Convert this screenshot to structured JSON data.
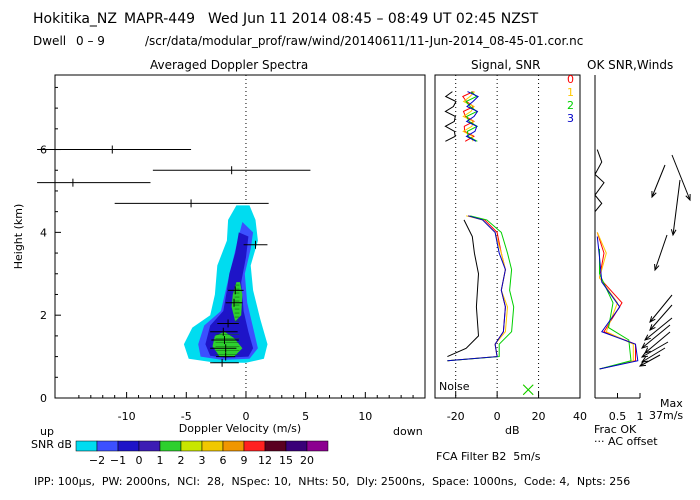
{
  "header": {
    "site": "Hokitika_NZ",
    "radar": "MAPR-449",
    "datetime": "Wed Jun 11 2014 08:45 – 08:49 UT 02:45 NZST",
    "dwell_label": "Dwell",
    "dwell_range": "0 – 9",
    "file_path": "/scr/data/modular_prof/raw/wind/20140611/11-Jun-2014_08-45-01.cor.nc"
  },
  "panels": {
    "spectra_title": "Averaged Doppler Spectra",
    "signal_title": "Signal, SNR",
    "ok_title": "OK SNR,Winds"
  },
  "labels": {
    "up": "up",
    "down": "down",
    "snr_db": "SNR dB",
    "noise": "Noise",
    "fca": "FCA Filter B2  5m/s",
    "max": "Max",
    "max_value": "37m/s",
    "frac_ok": "Frac OK",
    "ac_offset": "··· AC offset",
    "db_xlabel": "dB",
    "footer": "IPP: 100μs,  PW: 2000ns,  NCI:  28,  NSpec: 10,  NHts: 50,  Dly: 2500ns,  Space: 1000ns,  Code: 4,  Npts: 256"
  },
  "colorbar": {
    "labels": [
      "-2",
      "-1",
      "0",
      "1",
      "2",
      "3",
      "6",
      "9",
      "12",
      "15",
      "20"
    ],
    "colors": [
      "#00dcf0",
      "#3c50ff",
      "#1e14c8",
      "#3c1cb4",
      "#2ed02e",
      "#c8e600",
      "#f0c800",
      "#f09600",
      "#ff2020",
      "#5a0020",
      "#3a0078",
      "#8c0090"
    ]
  },
  "legend": [
    {
      "label": "0",
      "color": "#ff0000"
    },
    {
      "label": "1",
      "color": "#ffc800"
    },
    {
      "label": "2",
      "color": "#00d000"
    },
    {
      "label": "3",
      "color": "#0000c8"
    }
  ],
  "chart_data": [
    {
      "type": "heatmap",
      "title": "Averaged Doppler Spectra",
      "xlabel": "Doppler Velocity (m/s)",
      "ylabel": "Height (km)",
      "xlim": [
        -16,
        15
      ],
      "ylim": [
        0,
        7.8
      ],
      "xticks": [
        -10,
        -5,
        0,
        5,
        10
      ],
      "yticks": [
        0,
        2,
        4,
        6
      ],
      "contours": [
        {
          "level": -2,
          "color": "#00dcf0",
          "points": [
            [
              -0.8,
              4.65
            ],
            [
              -1.5,
              4.3
            ],
            [
              -1.6,
              3.8
            ],
            [
              -2.4,
              3.2
            ],
            [
              -2.6,
              2.5
            ],
            [
              -3.0,
              2.0
            ],
            [
              -4.5,
              1.7
            ],
            [
              -5.2,
              1.3
            ],
            [
              -4.8,
              0.95
            ],
            [
              -2.5,
              0.85
            ],
            [
              0,
              0.85
            ],
            [
              1.5,
              0.95
            ],
            [
              1.8,
              1.3
            ],
            [
              1.2,
              1.9
            ],
            [
              0.6,
              2.6
            ],
            [
              0.4,
              3.2
            ],
            [
              1.0,
              3.8
            ],
            [
              0.8,
              4.3
            ],
            [
              0.3,
              4.65
            ]
          ]
        },
        {
          "level": -1,
          "color": "#3c50ff",
          "points": [
            [
              -0.3,
              4.25
            ],
            [
              -0.7,
              3.8
            ],
            [
              -1.2,
              3.2
            ],
            [
              -1.7,
              2.6
            ],
            [
              -2.1,
              2.1
            ],
            [
              -3.5,
              1.75
            ],
            [
              -4.0,
              1.3
            ],
            [
              -3.8,
              1.0
            ],
            [
              -2.0,
              0.92
            ],
            [
              0.3,
              0.95
            ],
            [
              1.0,
              1.2
            ],
            [
              0.6,
              1.7
            ],
            [
              0.1,
              2.3
            ],
            [
              -0.1,
              3.0
            ],
            [
              0.4,
              3.6
            ],
            [
              0.6,
              4.0
            ]
          ]
        },
        {
          "level": 0,
          "color": "#1e14c8",
          "points": [
            [
              -0.6,
              4.0
            ],
            [
              -0.9,
              3.5
            ],
            [
              -1.4,
              3.0
            ],
            [
              -1.6,
              2.6
            ],
            [
              -1.9,
              2.1
            ],
            [
              -3.0,
              1.75
            ],
            [
              -3.4,
              1.3
            ],
            [
              -3.0,
              1.02
            ],
            [
              -1.8,
              0.97
            ],
            [
              0.2,
              1.0
            ],
            [
              0.6,
              1.2
            ],
            [
              0.2,
              1.6
            ],
            [
              -0.2,
              2.1
            ],
            [
              -0.4,
              2.8
            ],
            [
              0.0,
              3.4
            ],
            [
              0.2,
              3.9
            ]
          ]
        },
        {
          "level": 1,
          "color": "#2ed02e",
          "points": [
            [
              -0.8,
              2.8
            ],
            [
              -1.1,
              2.5
            ],
            [
              -1.2,
              2.2
            ],
            [
              -0.9,
              1.85
            ],
            [
              -0.4,
              2.0
            ],
            [
              -0.3,
              2.5
            ],
            [
              -0.5,
              2.8
            ]
          ]
        },
        {
          "level": 1,
          "color": "#2ed02e",
          "points": [
            [
              -2.6,
              1.5
            ],
            [
              -2.8,
              1.25
            ],
            [
              -2.2,
              1.0
            ],
            [
              -1.0,
              1.0
            ],
            [
              -0.3,
              1.2
            ],
            [
              -1.0,
              1.45
            ],
            [
              -1.8,
              1.6
            ]
          ]
        }
      ],
      "moments": [
        {
          "height": 6.0,
          "velocity": -11.2,
          "x0": -17.5,
          "x1": -4.6
        },
        {
          "height": 5.5,
          "velocity": -1.2,
          "x0": -7.8,
          "x1": 5.4
        },
        {
          "height": 5.2,
          "velocity": -14.5,
          "x0": -17.5,
          "x1": -8.0
        },
        {
          "height": 4.7,
          "velocity": -4.6,
          "x0": -11.0,
          "x1": 1.9
        },
        {
          "height": 3.7,
          "velocity": 0.8,
          "x0": -0.2,
          "x1": 1.8
        },
        {
          "height": 2.6,
          "velocity": -0.9,
          "x0": -1.5,
          "x1": -0.2
        },
        {
          "height": 2.3,
          "velocity": -1.0,
          "x0": -1.7,
          "x1": -0.3
        },
        {
          "height": 1.8,
          "velocity": -1.5,
          "x0": -2.4,
          "x1": -0.6
        },
        {
          "height": 1.6,
          "velocity": -1.9,
          "x0": -3.0,
          "x1": -0.7
        },
        {
          "height": 1.4,
          "velocity": -1.8,
          "x0": -2.9,
          "x1": -0.6
        },
        {
          "height": 1.2,
          "velocity": -1.7,
          "x0": -3.0,
          "x1": -0.8
        },
        {
          "height": 1.0,
          "velocity": -1.7,
          "x0": -2.5,
          "x1": -0.9
        },
        {
          "height": 0.85,
          "velocity": -2.0,
          "x0": -3.0,
          "x1": -0.6
        }
      ]
    },
    {
      "type": "line",
      "title": "Signal, SNR",
      "xlabel": "dB",
      "xlim": [
        -30,
        40
      ],
      "ylim": [
        0,
        7.8
      ],
      "xticks": [
        -20,
        0,
        20,
        40
      ],
      "series": [
        {
          "name": "Noise",
          "color": "#000000",
          "points": [
            [
              -24,
              1.0
            ],
            [
              -15,
              1.2
            ],
            [
              -9,
              1.5
            ],
            [
              -10,
              2.2
            ],
            [
              -9,
              3.0
            ],
            [
              -11,
              3.5
            ],
            [
              -12,
              3.9
            ],
            [
              -16,
              4.3
            ]
          ]
        },
        {
          "name": "0",
          "color": "#ff0000",
          "points": [
            [
              -24,
              0.9
            ],
            [
              0,
              1.0
            ],
            [
              -1,
              1.3
            ],
            [
              3,
              1.6
            ],
            [
              4,
              2.2
            ],
            [
              2,
              2.6
            ],
            [
              4,
              3.1
            ],
            [
              2,
              3.5
            ],
            [
              0,
              4.0
            ],
            [
              -6,
              4.3
            ],
            [
              -14,
              4.4
            ]
          ]
        },
        {
          "name": "1",
          "color": "#ffc800",
          "points": [
            [
              -24,
              0.9
            ],
            [
              0,
              1.0
            ],
            [
              -1,
              1.3
            ],
            [
              4,
              1.6
            ],
            [
              5,
              2.2
            ],
            [
              2,
              2.6
            ],
            [
              4,
              3.1
            ],
            [
              2,
              3.5
            ],
            [
              -1,
              4.0
            ],
            [
              -7,
              4.3
            ],
            [
              -15,
              4.4
            ]
          ]
        },
        {
          "name": "2",
          "color": "#00d000",
          "points": [
            [
              -24,
              0.9
            ],
            [
              1,
              1.0
            ],
            [
              1,
              1.3
            ],
            [
              7,
              1.6
            ],
            [
              8,
              2.2
            ],
            [
              6,
              2.6
            ],
            [
              7,
              3.1
            ],
            [
              5,
              3.5
            ],
            [
              2,
              4.0
            ],
            [
              -5,
              4.3
            ],
            [
              -13,
              4.4
            ]
          ]
        },
        {
          "name": "3",
          "color": "#0000c8",
          "points": [
            [
              -24,
              0.9
            ],
            [
              0,
              1.0
            ],
            [
              -1,
              1.3
            ],
            [
              3,
              1.6
            ],
            [
              4,
              2.2
            ],
            [
              2,
              2.6
            ],
            [
              4,
              3.1
            ],
            [
              1,
              3.5
            ],
            [
              -1,
              4.0
            ],
            [
              -7,
              4.3
            ],
            [
              -14,
              4.4
            ]
          ]
        }
      ]
    },
    {
      "type": "line",
      "title": "OK SNR,Winds",
      "xlabel": "Frac OK",
      "xlim": [
        0,
        1
      ],
      "ylim": [
        0,
        7.8
      ],
      "xticks": [
        0.5,
        1
      ],
      "series": [
        {
          "name": "0",
          "color": "#ff0000",
          "points": [
            [
              0.1,
              0.7
            ],
            [
              0.9,
              0.9
            ],
            [
              0.9,
              1.3
            ],
            [
              0.2,
              1.6
            ],
            [
              0.6,
              2.3
            ],
            [
              0.1,
              2.9
            ],
            [
              0.2,
              3.5
            ],
            [
              0.05,
              4.0
            ]
          ]
        },
        {
          "name": "1",
          "color": "#ffc800",
          "points": [
            [
              0.1,
              0.7
            ],
            [
              0.85,
              0.9
            ],
            [
              0.85,
              1.3
            ],
            [
              0.25,
              1.6
            ],
            [
              0.5,
              2.3
            ],
            [
              0.1,
              2.9
            ],
            [
              0.25,
              3.5
            ],
            [
              0.05,
              4.0
            ]
          ]
        },
        {
          "name": "2",
          "color": "#00d000",
          "points": [
            [
              0.1,
              0.7
            ],
            [
              0.8,
              0.9
            ],
            [
              0.75,
              1.4
            ],
            [
              0.3,
              1.7
            ],
            [
              0.4,
              2.3
            ],
            [
              0.1,
              3.0
            ],
            [
              0.1,
              3.6
            ]
          ]
        },
        {
          "name": "3",
          "color": "#0000c8",
          "points": [
            [
              0.1,
              0.7
            ],
            [
              0.95,
              0.9
            ],
            [
              0.9,
              1.3
            ],
            [
              0.15,
              1.6
            ],
            [
              0.55,
              2.2
            ],
            [
              0.15,
              2.8
            ],
            [
              0.1,
              3.4
            ],
            [
              0.05,
              3.9
            ]
          ]
        }
      ]
    }
  ]
}
